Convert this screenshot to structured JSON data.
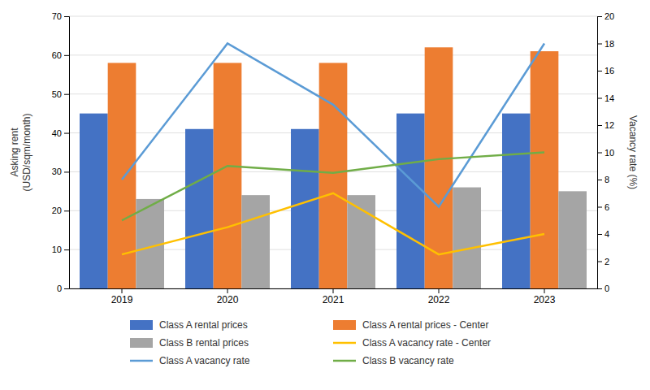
{
  "chart_data": {
    "type": "bar",
    "categories": [
      "2019",
      "2020",
      "2021",
      "2022",
      "2023"
    ],
    "ylabel": "Asking rent\n(USD/sqm/month)",
    "y2label": "Vacancy rate (%)",
    "ylim": [
      0,
      70
    ],
    "yticks": [
      0,
      10,
      20,
      30,
      40,
      50,
      60,
      70
    ],
    "y2lim": [
      0,
      20
    ],
    "y2ticks": [
      0,
      2,
      4,
      6,
      8,
      10,
      12,
      14,
      16,
      18,
      20
    ],
    "grid": true,
    "legend": "bottom",
    "series": [
      {
        "name": "Class A rental prices",
        "type": "bar",
        "color": "#4472C4",
        "values": [
          45,
          41,
          41,
          45,
          45
        ]
      },
      {
        "name": "Class A rental prices - Center",
        "type": "bar",
        "color": "#ED7D31",
        "values": [
          58,
          58,
          58,
          62,
          61
        ]
      },
      {
        "name": "Class B rental prices",
        "type": "bar",
        "color": "#A5A5A5",
        "values": [
          23,
          24,
          24,
          26,
          25
        ]
      },
      {
        "name": "Class A vacancy rate - Center",
        "type": "line",
        "axis": "y2",
        "color": "#FFC000",
        "values": [
          2.5,
          4.5,
          7.0,
          2.5,
          4.0
        ]
      },
      {
        "name": "Class A vacancy rate",
        "type": "line",
        "axis": "y2",
        "color": "#5B9BD5",
        "values": [
          8.0,
          18.0,
          13.5,
          6.0,
          18.0
        ]
      },
      {
        "name": "Class B vacancy rate",
        "type": "line",
        "axis": "y2",
        "color": "#70AD47",
        "values": [
          5.0,
          9.0,
          8.5,
          9.5,
          10.0
        ]
      }
    ]
  }
}
